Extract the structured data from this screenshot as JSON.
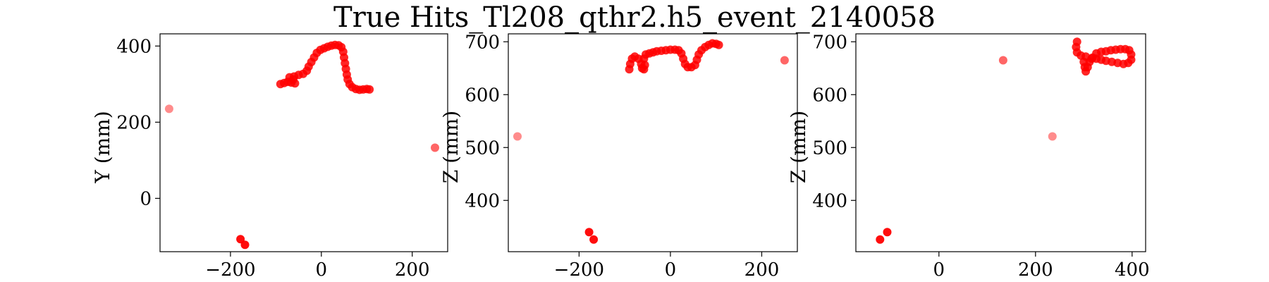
{
  "title": "True Hits_Tl208_qthr2.h5_event_2140058",
  "colors": {
    "hit": "#ff0000",
    "axis": "#000000"
  },
  "chart_data": [
    {
      "type": "scatter",
      "xlabel": "",
      "ylabel": "Y (mm)",
      "xlim": [
        -355,
        278
      ],
      "ylim": [
        -140,
        432
      ],
      "xticks": [
        -200,
        0,
        200
      ],
      "yticks": [
        0,
        200,
        400
      ],
      "grid": false,
      "series": [
        {
          "points": [
            [
              -335,
              235,
              0.45
            ],
            [
              250,
              133,
              0.6
            ],
            [
              -178,
              -107,
              0.95
            ],
            [
              -168,
              -122,
              0.95
            ],
            [
              -90,
              300,
              0.85
            ],
            [
              -82,
              303,
              0.85
            ],
            [
              -74,
              306,
              0.85
            ],
            [
              -66,
              304,
              0.85
            ],
            [
              -58,
              302,
              0.85
            ],
            [
              -62,
              312,
              0.85
            ],
            [
              -70,
              318,
              0.85
            ],
            [
              -60,
              320,
              0.85
            ],
            [
              -50,
              324,
              0.85
            ],
            [
              -40,
              327,
              0.85
            ],
            [
              -32,
              335,
              0.85
            ],
            [
              -28,
              346,
              0.85
            ],
            [
              -22,
              358,
              0.85
            ],
            [
              -16,
              370,
              0.85
            ],
            [
              -10,
              382,
              0.85
            ],
            [
              -2,
              390,
              0.85
            ],
            [
              6,
              394,
              0.85
            ],
            [
              14,
              398,
              0.85
            ],
            [
              22,
              401,
              0.85
            ],
            [
              30,
              403,
              0.85
            ],
            [
              38,
              402,
              0.85
            ],
            [
              44,
              397,
              0.85
            ],
            [
              48,
              385,
              0.85
            ],
            [
              50,
              370,
              0.85
            ],
            [
              52,
              355,
              0.85
            ],
            [
              54,
              340,
              0.85
            ],
            [
              56,
              325,
              0.85
            ],
            [
              58,
              312,
              0.85
            ],
            [
              62,
              300,
              0.85
            ],
            [
              68,
              292,
              0.85
            ],
            [
              76,
              287,
              0.85
            ],
            [
              84,
              285,
              0.85
            ],
            [
              92,
              286,
              0.85
            ],
            [
              100,
              287,
              0.85
            ],
            [
              106,
              286,
              0.85
            ]
          ]
        }
      ]
    },
    {
      "type": "scatter",
      "xlabel": "",
      "ylabel": "Z (mm)",
      "xlim": [
        -355,
        278
      ],
      "ylim": [
        303,
        715
      ],
      "xticks": [
        -200,
        0,
        200
      ],
      "yticks": [
        400,
        500,
        600,
        700
      ],
      "grid": false,
      "series": [
        {
          "points": [
            [
              -335,
              521,
              0.45
            ],
            [
              250,
              665,
              0.6
            ],
            [
              -178,
              340,
              0.95
            ],
            [
              -168,
              326,
              0.95
            ],
            [
              -90,
              648,
              0.85
            ],
            [
              -88,
              658,
              0.85
            ],
            [
              -84,
              668,
              0.85
            ],
            [
              -78,
              672,
              0.85
            ],
            [
              -70,
              668,
              0.85
            ],
            [
              -64,
              658,
              0.85
            ],
            [
              -62,
              650,
              0.85
            ],
            [
              -58,
              648,
              0.85
            ],
            [
              -56,
              656,
              0.85
            ],
            [
              -58,
              668,
              0.85
            ],
            [
              -54,
              676,
              0.85
            ],
            [
              -46,
              678,
              0.85
            ],
            [
              -38,
              680,
              0.85
            ],
            [
              -30,
              682,
              0.85
            ],
            [
              -20,
              683,
              0.85
            ],
            [
              -10,
              684,
              0.85
            ],
            [
              0,
              685,
              0.85
            ],
            [
              10,
              685,
              0.85
            ],
            [
              18,
              684,
              0.85
            ],
            [
              24,
              678,
              0.85
            ],
            [
              28,
              668,
              0.85
            ],
            [
              32,
              658,
              0.85
            ],
            [
              38,
              652,
              0.85
            ],
            [
              46,
              652,
              0.85
            ],
            [
              54,
              656,
              0.85
            ],
            [
              58,
              666,
              0.85
            ],
            [
              62,
              676,
              0.85
            ],
            [
              68,
              684,
              0.85
            ],
            [
              76,
              690,
              0.85
            ],
            [
              84,
              694,
              0.85
            ],
            [
              92,
              697,
              0.85
            ],
            [
              100,
              696,
              0.85
            ],
            [
              106,
              694,
              0.85
            ]
          ]
        }
      ]
    },
    {
      "type": "scatter",
      "xlabel": "",
      "ylabel": "Z (mm)",
      "xlim": [
        -172,
        428
      ],
      "ylim": [
        303,
        715
      ],
      "xticks": [
        0,
        200,
        400
      ],
      "yticks": [
        400,
        500,
        600,
        700
      ],
      "grid": false,
      "series": [
        {
          "points": [
            [
              235,
              521,
              0.45
            ],
            [
              133,
              665,
              0.6
            ],
            [
              -122,
              326,
              0.95
            ],
            [
              -107,
              340,
              0.95
            ],
            [
              286,
              700,
              0.85
            ],
            [
              284,
              690,
              0.85
            ],
            [
              286,
              680,
              0.85
            ],
            [
              294,
              674,
              0.85
            ],
            [
              304,
              672,
              0.85
            ],
            [
              300,
              662,
              0.85
            ],
            [
              302,
              652,
              0.85
            ],
            [
              304,
              644,
              0.85
            ],
            [
              308,
              652,
              0.85
            ],
            [
              312,
              662,
              0.85
            ],
            [
              318,
              670,
              0.85
            ],
            [
              326,
              678,
              0.85
            ],
            [
              336,
              681,
              0.85
            ],
            [
              346,
              682,
              0.85
            ],
            [
              356,
              684,
              0.85
            ],
            [
              366,
              685,
              0.85
            ],
            [
              376,
              686,
              0.85
            ],
            [
              386,
              686,
              0.85
            ],
            [
              394,
              684,
              0.85
            ],
            [
              398,
              676,
              0.85
            ],
            [
              398,
              666,
              0.85
            ],
            [
              392,
              660,
              0.85
            ],
            [
              382,
              658,
              0.85
            ],
            [
              370,
              660,
              0.85
            ],
            [
              358,
              662,
              0.85
            ],
            [
              346,
              664,
              0.85
            ],
            [
              336,
              666,
              0.85
            ],
            [
              326,
              668,
              0.85
            ],
            [
              316,
              668,
              0.85
            ]
          ]
        }
      ]
    }
  ]
}
